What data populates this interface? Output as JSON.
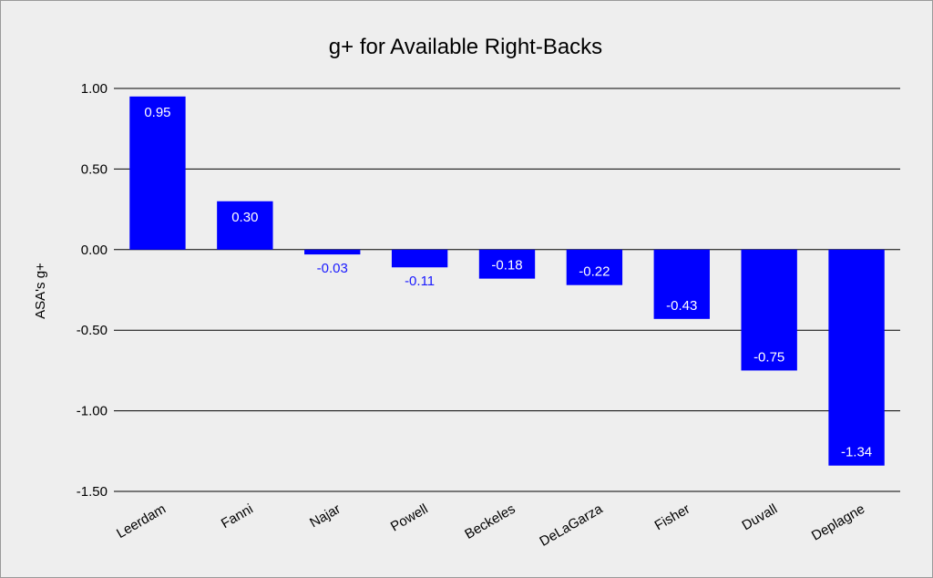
{
  "chart_data": {
    "type": "bar",
    "title": "g+ for Available Right-Backs",
    "xlabel": "",
    "ylabel": "ASA's g+",
    "categories": [
      "Leerdam",
      "Fanni",
      "Najar",
      "Powell",
      "Beckeles",
      "DeLaGarza",
      "Fisher",
      "Duvall",
      "Deplagne"
    ],
    "values": [
      0.95,
      0.3,
      -0.03,
      -0.11,
      -0.18,
      -0.22,
      -0.43,
      -0.75,
      -1.34
    ],
    "data_labels": [
      "0.95",
      "0.30",
      "-0.03",
      "-0.11",
      "-0.18",
      "-0.22",
      "-0.43",
      "-0.75",
      "-1.34"
    ],
    "ylim": [
      -1.5,
      1.0
    ],
    "yticks": [
      1.0,
      0.5,
      0.0,
      -0.5,
      -1.0,
      -1.5
    ],
    "ytick_labels": [
      "1.00",
      "0.50",
      "0.00",
      "-0.50",
      "-1.00",
      "-1.50"
    ],
    "grid": true,
    "legend": "none",
    "colors": {
      "bar": "#0000ff",
      "label_inside": "#ffffff",
      "label_outside": "#1a1aff",
      "background": "#eeeeee",
      "gridline": "#000000"
    }
  }
}
